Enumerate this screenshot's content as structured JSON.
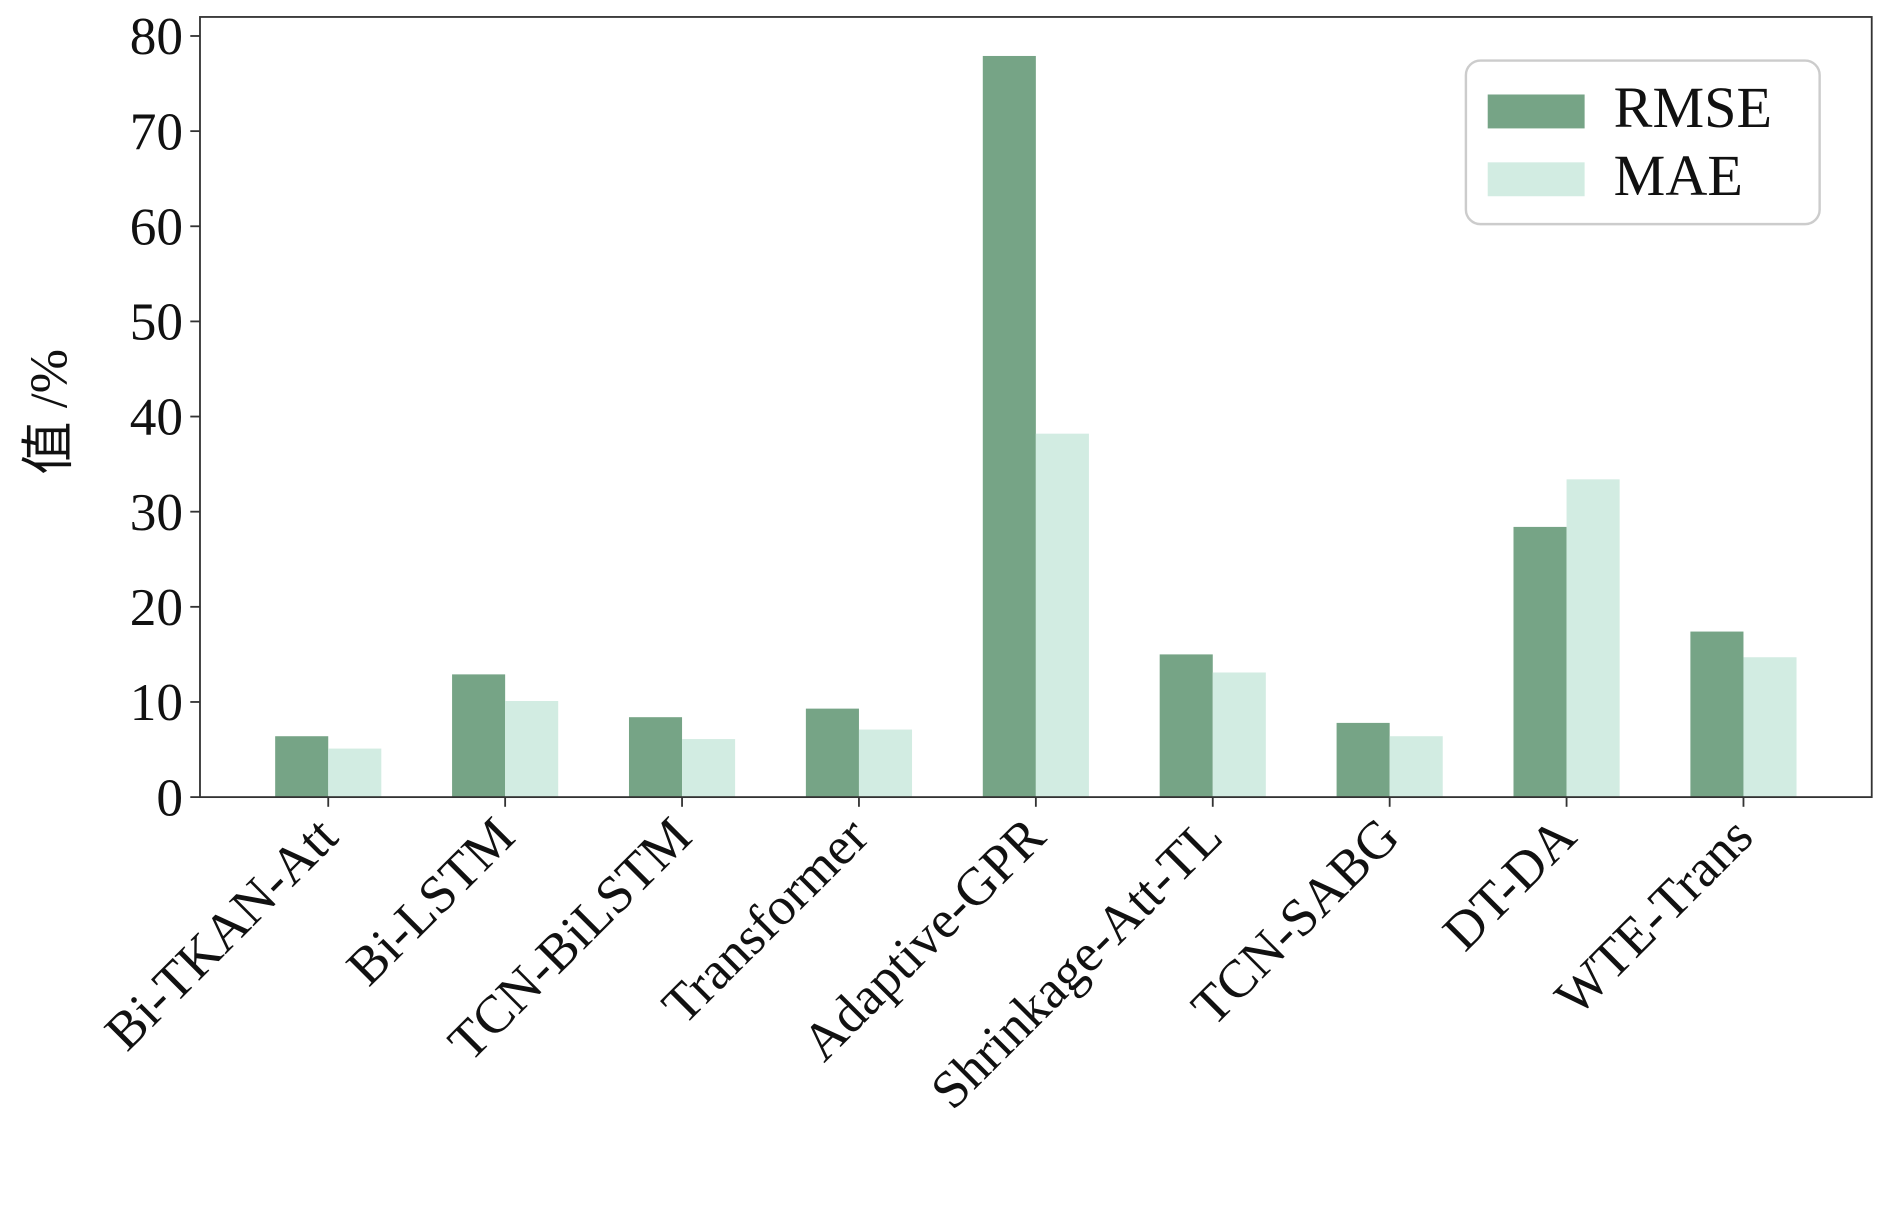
{
  "chart_data": {
    "type": "bar",
    "y_label": "值 /%",
    "categories": [
      "Bi-TKAN-Att",
      "Bi-LSTM",
      "TCN-BiLSTM",
      "Transformer",
      "Adaptive-GPR",
      "Shrinkage-Att-TL",
      "TCN-SABG",
      "DT-DA",
      "WTE-Trans"
    ],
    "series": [
      {
        "name": "RMSE",
        "color": "#76a486",
        "values": [
          6.4,
          12.9,
          8.4,
          9.3,
          77.9,
          15.0,
          7.8,
          28.4,
          17.4
        ]
      },
      {
        "name": "MAE",
        "color": "#d2ece2",
        "values": [
          5.1,
          10.1,
          6.1,
          7.1,
          38.2,
          13.1,
          6.4,
          33.4,
          14.7
        ]
      }
    ],
    "ylim": [
      0,
      82
    ],
    "yticks": [
      0,
      10,
      20,
      30,
      40,
      50,
      60,
      70,
      80
    ],
    "legend": "upper right"
  }
}
